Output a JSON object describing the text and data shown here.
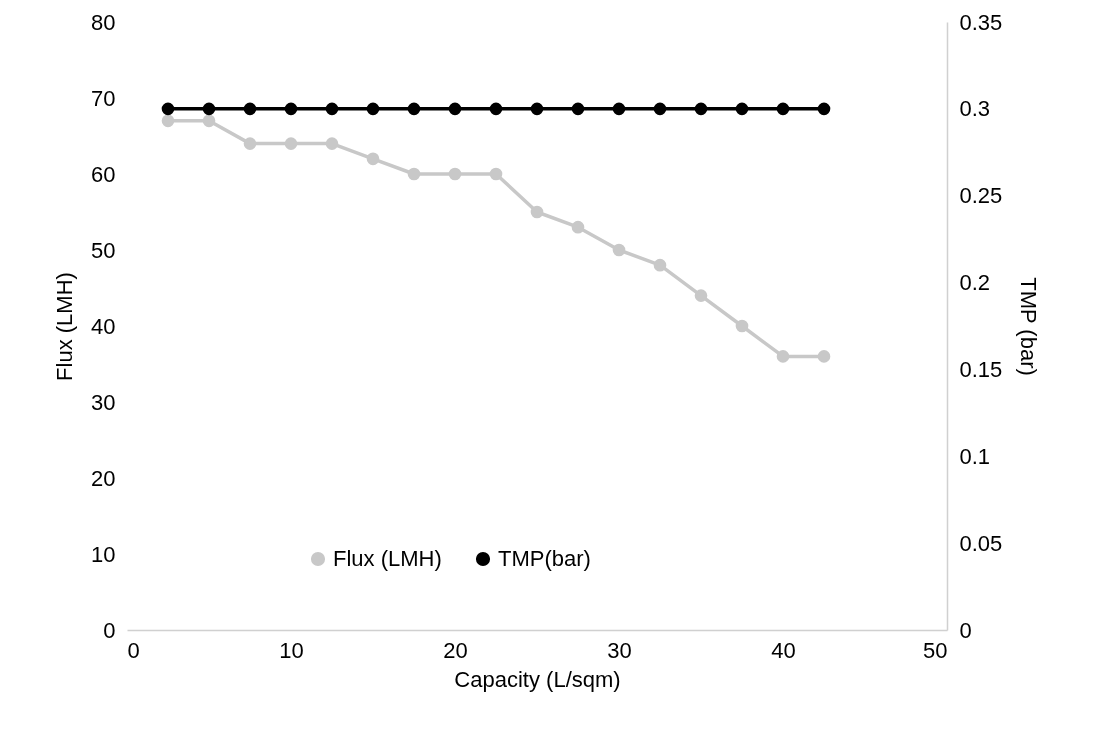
{
  "chart_data": {
    "type": "line",
    "xlabel": "Capacity (L/sqm)",
    "ylabel": "Flux (LMH)",
    "y2label": "TMP (bar)",
    "x": [
      2.5,
      5,
      7.5,
      10,
      12.5,
      15,
      17.5,
      20,
      22.5,
      25,
      27.5,
      30,
      32.5,
      35,
      37.5,
      40,
      42.5
    ],
    "xlim": [
      0,
      50
    ],
    "xticks": [
      0,
      10,
      20,
      30,
      40,
      50
    ],
    "ylim": [
      0,
      80
    ],
    "yticks": [
      0,
      10,
      20,
      30,
      40,
      50,
      60,
      70,
      80
    ],
    "y2lim": [
      0,
      0.35
    ],
    "y2ticks": [
      0,
      0.05,
      0.1,
      0.15,
      0.2,
      0.25,
      0.3,
      0.35
    ],
    "series": [
      {
        "name": "Flux (LMH)",
        "color": "#c8c8c8",
        "values": [
          67,
          67,
          64,
          64,
          64,
          62,
          60,
          60,
          60,
          55,
          53,
          50,
          48,
          44,
          40,
          36,
          36
        ]
      },
      {
        "name": "TMP(bar)",
        "color": "#000000",
        "axis": "y2",
        "values": [
          0.3,
          0.3,
          0.3,
          0.3,
          0.3,
          0.3,
          0.3,
          0.3,
          0.3,
          0.3,
          0.3,
          0.3,
          0.3,
          0.3,
          0.3,
          0.3,
          0.3
        ]
      }
    ],
    "marker": "circle",
    "line_style": "solid",
    "legend": "bottom",
    "grid": false
  }
}
